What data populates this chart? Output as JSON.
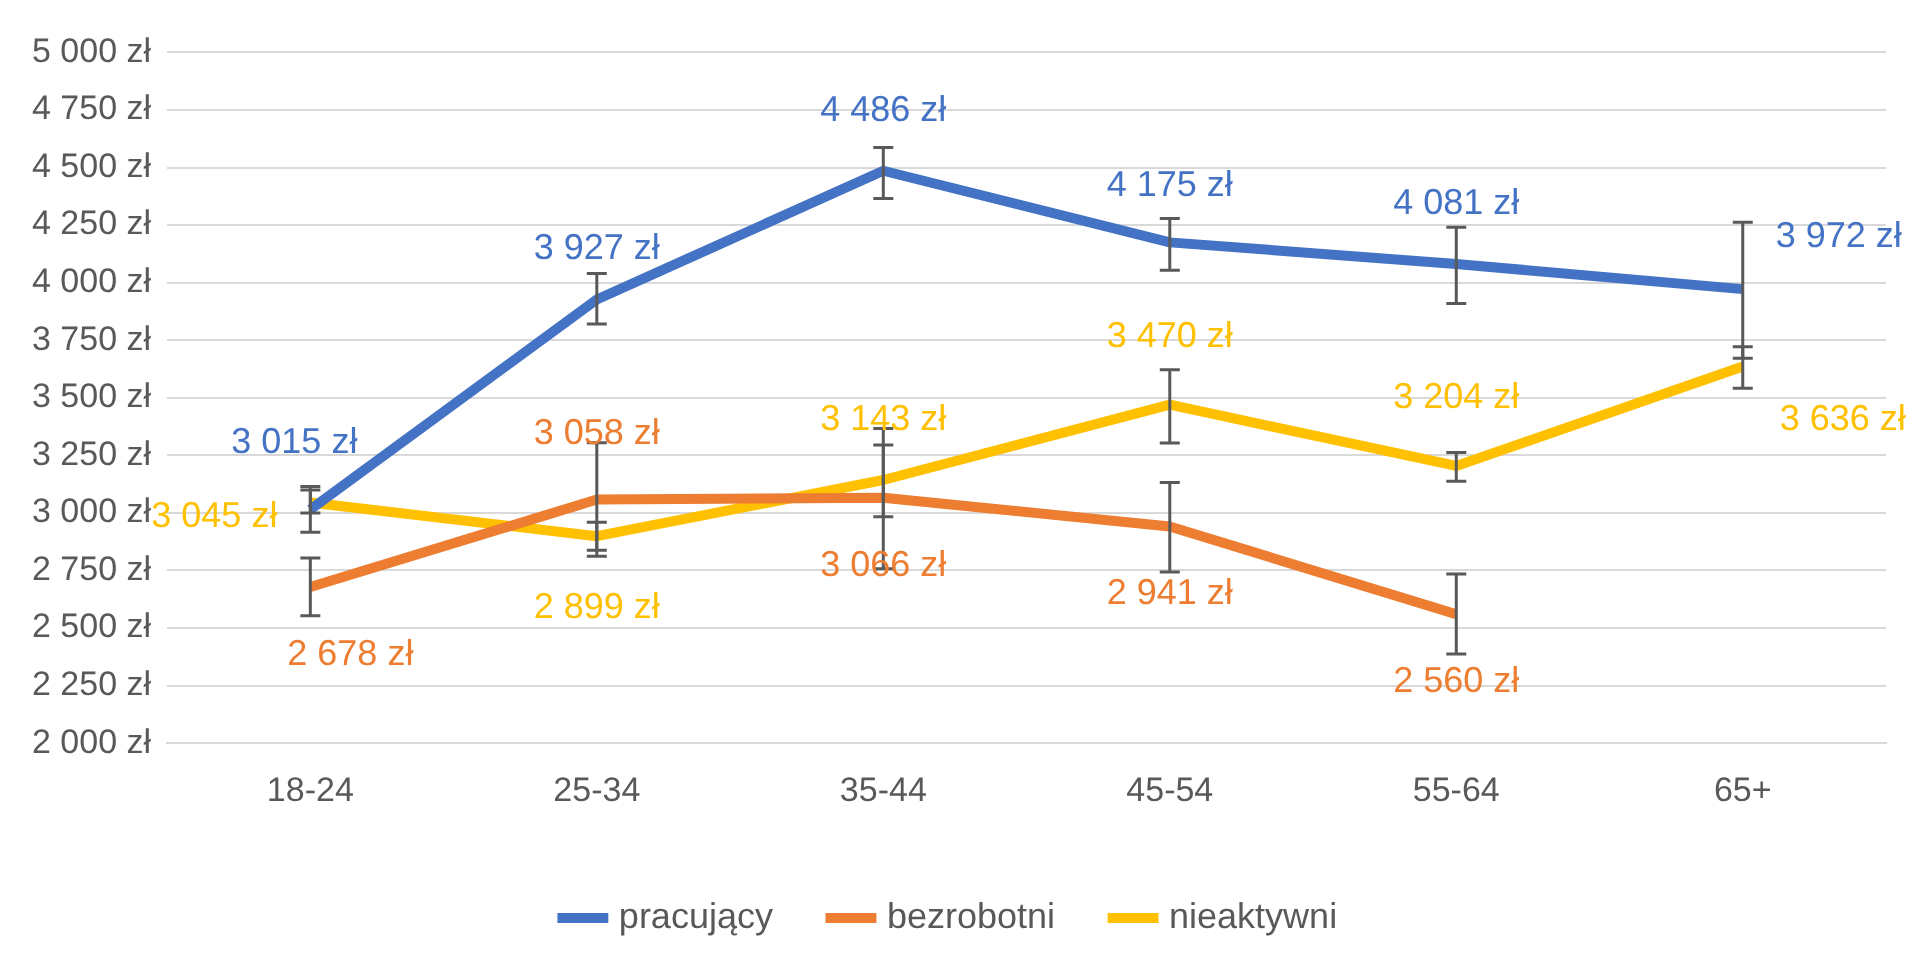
{
  "chart_data": {
    "type": "line",
    "categories": [
      "18-24",
      "25-34",
      "35-44",
      "45-54",
      "55-64",
      "65+"
    ],
    "series": [
      {
        "name": "pracujący",
        "color": "#4472c4",
        "values": [
          3015,
          3927,
          4486,
          4175,
          4081,
          3972
        ],
        "value_labels": [
          "3 015 zł",
          "3 927 zł",
          "4 486 zł",
          "4 175 zł",
          "4 081 zł",
          "3 972 zł"
        ],
        "errors": [
          [
            3000,
            3115
          ],
          [
            3820,
            4040
          ],
          [
            4366,
            4587
          ],
          [
            4054,
            4279
          ],
          [
            3910,
            4241
          ],
          [
            3672,
            4262
          ]
        ]
      },
      {
        "name": "bezrobotni",
        "color": "#ed7d31",
        "values": [
          2678,
          3058,
          3066,
          2941,
          2560,
          null
        ],
        "value_labels": [
          "2 678 zł",
          "3 058 zł",
          "3 066 zł",
          "2 941 zł",
          "2 560 zł",
          null
        ],
        "errors": [
          [
            2553,
            2804
          ],
          [
            2812,
            3305
          ],
          [
            2758,
            3367
          ],
          [
            2743,
            3132
          ],
          [
            2387,
            2735
          ],
          null
        ]
      },
      {
        "name": "nieaktywni",
        "color": "#ffc000",
        "values": [
          3045,
          2899,
          3143,
          3470,
          3204,
          3636
        ],
        "value_labels": [
          "3 045 zł",
          "2 899 zł",
          "3 143 zł",
          "3 470 zł",
          "3 204 zł",
          "3 636 zł"
        ],
        "errors": [
          [
            2916,
            3100
          ],
          [
            2838,
            2959
          ],
          [
            2983,
            3295
          ],
          [
            3304,
            3622
          ],
          [
            3138,
            3262
          ],
          [
            3541,
            3722
          ]
        ]
      }
    ],
    "ylim": [
      2000,
      5000
    ],
    "yticks": [
      {
        "value": 2000,
        "label": "2 000 zł"
      },
      {
        "value": 2250,
        "label": "2 250 zł"
      },
      {
        "value": 2500,
        "label": "2 500 zł"
      },
      {
        "value": 2750,
        "label": "2 750 zł"
      },
      {
        "value": 3000,
        "label": "3 000 zł"
      },
      {
        "value": 3250,
        "label": "3 250 zł"
      },
      {
        "value": 3500,
        "label": "3 500 zł"
      },
      {
        "value": 3750,
        "label": "3 750 zł"
      },
      {
        "value": 4000,
        "label": "4 000 zł"
      },
      {
        "value": 4250,
        "label": "4 250 zł"
      },
      {
        "value": 4500,
        "label": "4 500 zł"
      },
      {
        "value": 4750,
        "label": "4 750 zł"
      },
      {
        "value": 5000,
        "label": "5 000 zł"
      }
    ],
    "grid": "y",
    "legend": "bottom"
  }
}
